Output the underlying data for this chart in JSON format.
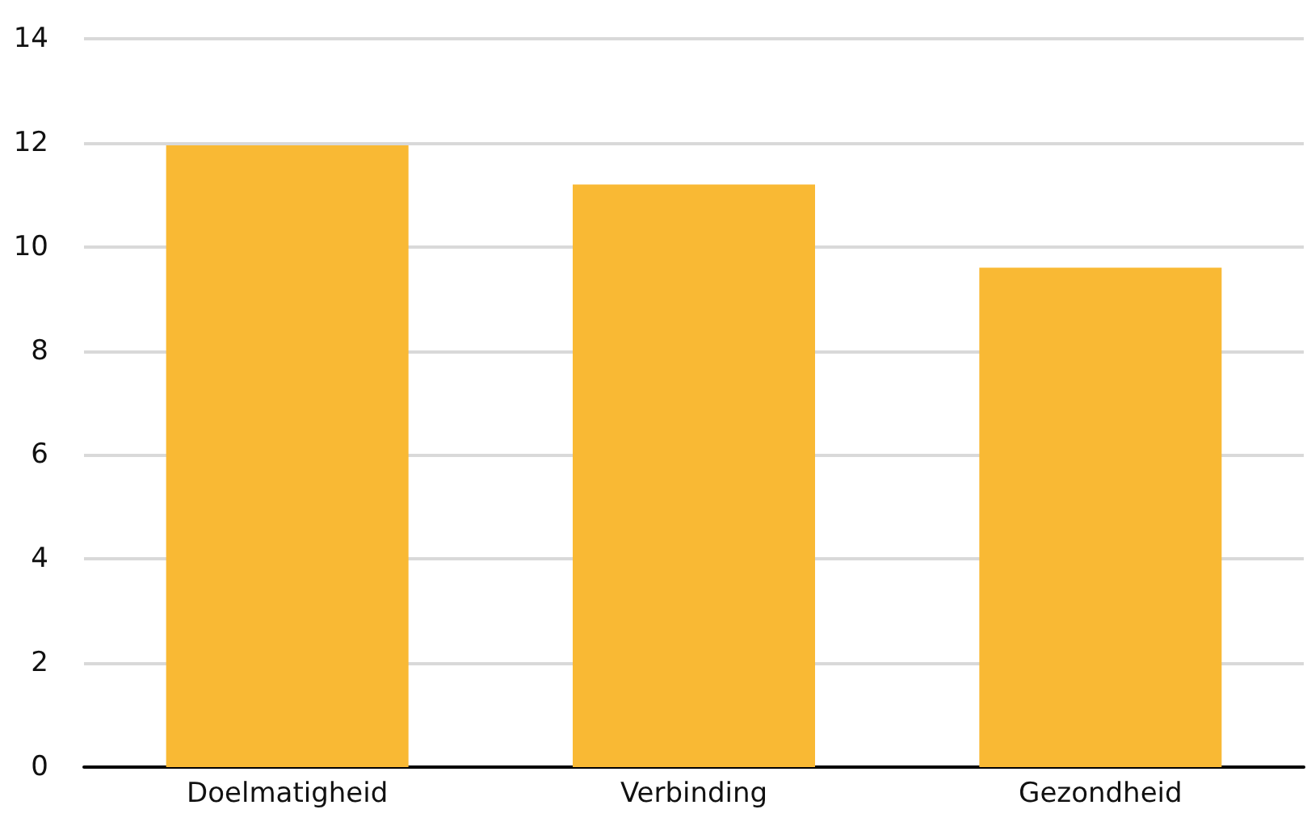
{
  "chart_data": {
    "type": "bar",
    "categories": [
      "Doelmatigheid",
      "Verbinding",
      "Gezondheid"
    ],
    "values": [
      11.95,
      11.2,
      9.6
    ],
    "color": "#f9b934",
    "ylim": [
      0,
      14
    ],
    "yticks": [
      0,
      2,
      4,
      6,
      8,
      10,
      12,
      14
    ],
    "grid": "y"
  }
}
